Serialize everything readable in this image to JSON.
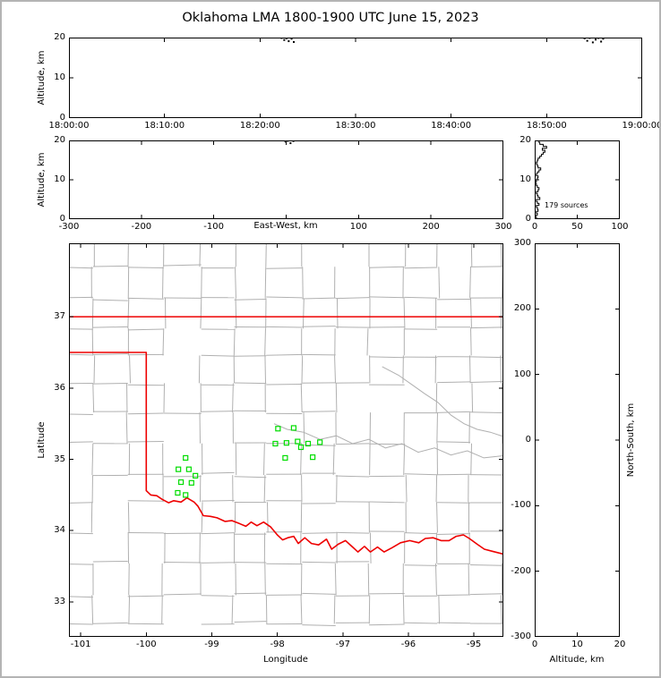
{
  "title": "Oklahoma LMA 1800-1900 UTC June 15, 2023",
  "colors": {
    "state_border": "#ee0000",
    "county_lines": "#b0b0b0",
    "station_marker": "#00dd00",
    "source_points": "#000000"
  },
  "chart_data": [
    {
      "id": "time-height",
      "type": "scatter",
      "ylabel": "Altitude, km",
      "ylim": [
        0,
        20
      ],
      "yticks": [
        0,
        10,
        20
      ],
      "xlim": [
        0,
        3600
      ],
      "x_unit": "seconds after 18:00:00 UTC",
      "xticks": [
        0,
        600,
        1200,
        1800,
        2400,
        3000,
        3600
      ],
      "xtick_labels": [
        "18:00:00",
        "18:10:00",
        "18:20:00",
        "18:30:00",
        "18:40:00",
        "18:50:00",
        "19:00:00"
      ],
      "points_t_alt": [
        [
          1335,
          19.9
        ],
        [
          1352,
          19.4
        ],
        [
          1366,
          19.8
        ],
        [
          1380,
          19.1
        ],
        [
          1398,
          19.7
        ],
        [
          1412,
          18.9
        ],
        [
          3238,
          19.8
        ],
        [
          3255,
          19.2
        ],
        [
          3270,
          19.9
        ],
        [
          3290,
          18.8
        ],
        [
          3308,
          19.5
        ],
        [
          3325,
          19.9
        ],
        [
          3342,
          19.0
        ],
        [
          3355,
          19.7
        ]
      ]
    },
    {
      "id": "ew-height",
      "type": "scatter",
      "xlabel": "East-West, km",
      "ylabel": "Altitude, km",
      "xlim": [
        -300,
        300
      ],
      "xticks": [
        -300,
        -200,
        -100,
        0,
        100,
        200,
        300
      ],
      "xtick_labels": [
        "-300",
        "-200",
        "-100",
        "",
        "100",
        "200",
        "300"
      ],
      "ylim": [
        0,
        20
      ],
      "yticks": [
        0,
        10,
        20
      ],
      "points_ew_alt": [
        [
          2,
          19.9
        ],
        [
          6,
          19.3
        ],
        [
          -1,
          19.7
        ],
        [
          10,
          19.85
        ]
      ]
    },
    {
      "id": "alt-histogram",
      "type": "line",
      "annotation": "179 sources",
      "xlim": [
        0,
        100
      ],
      "xticks": [
        0,
        50,
        100
      ],
      "xtick_labels": [
        "0",
        "50",
        "100"
      ],
      "ylim": [
        0,
        20
      ],
      "yticks": [
        0,
        10,
        20
      ],
      "bin_km": 0.5,
      "counts_per_bin": [
        2,
        1,
        3,
        2,
        4,
        3,
        2,
        5,
        3,
        2,
        6,
        4,
        3,
        2,
        4,
        5,
        3,
        2,
        1,
        2,
        3,
        4,
        2,
        3,
        5,
        7,
        4,
        3,
        2,
        3,
        4,
        6,
        8,
        10,
        12,
        9,
        14,
        10,
        6,
        5
      ]
    },
    {
      "id": "map",
      "type": "scatter",
      "xlabel": "Longitude",
      "ylabel": "Latitude",
      "xlim": [
        -101.18,
        -94.55
      ],
      "xticks": [
        -101,
        -100,
        -99,
        -98,
        -97,
        -96,
        -95
      ],
      "xtick_labels": [
        "-101",
        "-100",
        "-99",
        "-98",
        "-97",
        "-96",
        "-95"
      ],
      "ylim": [
        32.51,
        38.03
      ],
      "yticks": [
        33,
        34,
        35,
        36,
        37
      ],
      "stations_lon_lat": [
        [
          -97.99,
          35.43
        ],
        [
          -97.75,
          35.44
        ],
        [
          -98.03,
          35.22
        ],
        [
          -97.86,
          35.23
        ],
        [
          -97.69,
          35.25
        ],
        [
          -97.53,
          35.22
        ],
        [
          -97.35,
          35.24
        ],
        [
          -97.64,
          35.17
        ],
        [
          -97.88,
          35.02
        ],
        [
          -97.46,
          35.03
        ],
        [
          -99.4,
          35.02
        ],
        [
          -99.51,
          34.86
        ],
        [
          -99.35,
          34.86
        ],
        [
          -99.25,
          34.77
        ],
        [
          -99.47,
          34.68
        ],
        [
          -99.31,
          34.67
        ],
        [
          -99.4,
          34.5
        ],
        [
          -99.52,
          34.53
        ]
      ],
      "state_border": {
        "kansas_line_lat37": [
          [
            -101.18,
            37
          ],
          [
            -94.55,
            37
          ]
        ],
        "west_and_red_river": [
          [
            -101.18,
            36.5
          ],
          [
            -100,
            36.5
          ],
          [
            -100,
            34.56
          ],
          [
            -99.93,
            34.5
          ],
          [
            -99.84,
            34.49
          ],
          [
            -99.76,
            34.44
          ],
          [
            -99.66,
            34.39
          ],
          [
            -99.58,
            34.42
          ],
          [
            -99.47,
            34.4
          ],
          [
            -99.38,
            34.46
          ],
          [
            -99.27,
            34.4
          ],
          [
            -99.21,
            34.34
          ],
          [
            -99.13,
            34.21
          ],
          [
            -99.02,
            34.2
          ],
          [
            -98.92,
            34.18
          ],
          [
            -98.8,
            34.13
          ],
          [
            -98.69,
            34.14
          ],
          [
            -98.58,
            34.1
          ],
          [
            -98.48,
            34.06
          ],
          [
            -98.4,
            34.12
          ],
          [
            -98.31,
            34.07
          ],
          [
            -98.21,
            34.12
          ],
          [
            -98.1,
            34.05
          ],
          [
            -98.0,
            33.94
          ],
          [
            -97.92,
            33.87
          ],
          [
            -97.84,
            33.9
          ],
          [
            -97.75,
            33.92
          ],
          [
            -97.68,
            33.82
          ],
          [
            -97.58,
            33.9
          ],
          [
            -97.48,
            33.82
          ],
          [
            -97.37,
            33.8
          ],
          [
            -97.25,
            33.88
          ],
          [
            -97.17,
            33.74
          ],
          [
            -97.07,
            33.81
          ],
          [
            -96.96,
            33.86
          ],
          [
            -96.85,
            33.77
          ],
          [
            -96.77,
            33.7
          ],
          [
            -96.67,
            33.78
          ],
          [
            -96.58,
            33.7
          ],
          [
            -96.47,
            33.77
          ],
          [
            -96.37,
            33.7
          ],
          [
            -96.25,
            33.76
          ],
          [
            -96.12,
            33.83
          ],
          [
            -95.98,
            33.86
          ],
          [
            -95.84,
            33.83
          ],
          [
            -95.74,
            33.89
          ],
          [
            -95.62,
            33.9
          ],
          [
            -95.5,
            33.86
          ],
          [
            -95.38,
            33.86
          ],
          [
            -95.27,
            33.92
          ],
          [
            -95.16,
            33.94
          ],
          [
            -95.07,
            33.89
          ],
          [
            -94.95,
            33.81
          ],
          [
            -94.84,
            33.74
          ],
          [
            -94.72,
            33.71
          ],
          [
            -94.55,
            33.67
          ]
        ]
      },
      "rivers_lon_lat": [
        [
          [
            -98.05,
            35.5
          ],
          [
            -97.85,
            35.42
          ],
          [
            -97.6,
            35.38
          ],
          [
            -97.35,
            35.28
          ],
          [
            -97.1,
            35.33
          ],
          [
            -96.85,
            35.22
          ],
          [
            -96.6,
            35.28
          ],
          [
            -96.35,
            35.16
          ],
          [
            -96.1,
            35.22
          ],
          [
            -95.85,
            35.1
          ],
          [
            -95.6,
            35.16
          ],
          [
            -95.35,
            35.06
          ],
          [
            -95.1,
            35.12
          ],
          [
            -94.85,
            35.02
          ],
          [
            -94.55,
            35.05
          ]
        ],
        [
          [
            -96.4,
            36.3
          ],
          [
            -96.15,
            36.18
          ],
          [
            -95.95,
            36.05
          ],
          [
            -95.75,
            35.92
          ],
          [
            -95.55,
            35.8
          ],
          [
            -95.35,
            35.62
          ],
          [
            -95.15,
            35.5
          ],
          [
            -94.95,
            35.42
          ],
          [
            -94.75,
            35.38
          ],
          [
            -94.55,
            35.32
          ]
        ]
      ]
    },
    {
      "id": "ns-height",
      "type": "scatter",
      "xlabel": "Altitude, km",
      "ylabel": "North-South, km",
      "xlim": [
        0,
        20
      ],
      "xticks": [
        0,
        10,
        20
      ],
      "xtick_labels": [
        "0",
        "10",
        "20"
      ],
      "ylim": [
        -300,
        300
      ],
      "yticks": [
        -300,
        -200,
        -100,
        0,
        100,
        200,
        300
      ],
      "points_alt_ns": []
    }
  ]
}
